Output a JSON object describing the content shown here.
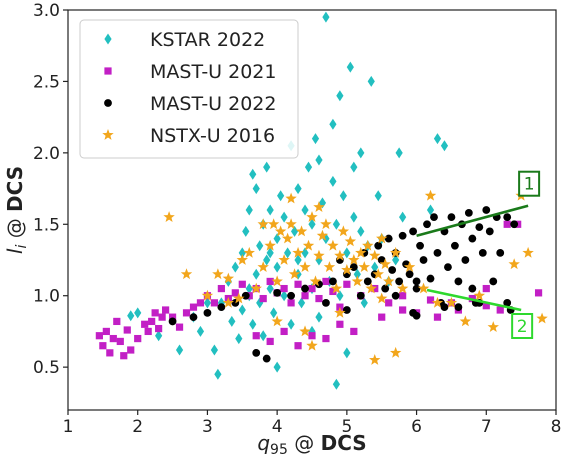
{
  "chart_data": {
    "type": "scatter",
    "title": "",
    "xlabel": {
      "base": "q",
      "sub": "95",
      "rest": " @ ",
      "bold": "DCS"
    },
    "ylabel": {
      "base": "l",
      "sub": "i",
      "rest": " @ ",
      "bold": "DCS"
    },
    "xlim": [
      1,
      8
    ],
    "ylim": [
      0.2,
      3.0
    ],
    "xticks": [
      "1",
      "2",
      "3",
      "4",
      "5",
      "6",
      "7",
      "8"
    ],
    "yticks": [
      "0.5",
      "1.0",
      "1.5",
      "2.0",
      "2.5",
      "3.0"
    ],
    "grid": false,
    "legend_position": "top-left",
    "series": [
      {
        "name": "KSTAR 2022",
        "marker": "diamond",
        "color": "#22bfc0",
        "points": [
          [
            1.9,
            0.86
          ],
          [
            2.0,
            0.88
          ],
          [
            2.3,
            0.72
          ],
          [
            2.6,
            0.62
          ],
          [
            2.8,
            0.85
          ],
          [
            2.9,
            0.75
          ],
          [
            3.0,
            0.95
          ],
          [
            3.1,
            0.62
          ],
          [
            3.15,
            0.45
          ],
          [
            3.2,
            0.95
          ],
          [
            3.3,
            1.1
          ],
          [
            3.35,
            0.82
          ],
          [
            3.4,
            1.2
          ],
          [
            3.45,
            0.7
          ],
          [
            3.5,
            1.3
          ],
          [
            3.5,
            0.9
          ],
          [
            3.55,
            1.45
          ],
          [
            3.6,
            1.0
          ],
          [
            3.6,
            1.6
          ],
          [
            3.65,
            0.8
          ],
          [
            3.65,
            1.85
          ],
          [
            3.7,
            1.15
          ],
          [
            3.7,
            1.75
          ],
          [
            3.75,
            1.35
          ],
          [
            3.75,
            0.95
          ],
          [
            3.8,
            1.5
          ],
          [
            3.8,
            0.72
          ],
          [
            3.85,
            1.25
          ],
          [
            3.85,
            1.9
          ],
          [
            3.9,
            1.05
          ],
          [
            3.9,
            1.6
          ],
          [
            3.95,
            0.88
          ],
          [
            4.0,
            1.4
          ],
          [
            4.0,
            1.2
          ],
          [
            4.0,
            0.5
          ],
          [
            4.05,
            1.7
          ],
          [
            4.1,
            1.0
          ],
          [
            4.1,
            1.55
          ],
          [
            4.15,
            1.3
          ],
          [
            4.2,
            0.8
          ],
          [
            4.2,
            2.05
          ],
          [
            4.25,
            1.45
          ],
          [
            4.3,
            1.15
          ],
          [
            4.3,
            1.75
          ],
          [
            4.35,
            0.95
          ],
          [
            4.4,
            1.6
          ],
          [
            4.4,
            1.3
          ],
          [
            4.45,
            1.9
          ],
          [
            4.5,
            1.05
          ],
          [
            4.5,
            1.5
          ],
          [
            4.55,
            2.1
          ],
          [
            4.6,
            1.25
          ],
          [
            4.6,
            0.85
          ],
          [
            4.65,
            1.65
          ],
          [
            4.7,
            1.4
          ],
          [
            4.7,
            2.95
          ],
          [
            4.75,
            1.1
          ],
          [
            4.8,
            1.8
          ],
          [
            4.8,
            2.2
          ],
          [
            4.85,
            1.5
          ],
          [
            4.9,
            1.0
          ],
          [
            4.9,
            2.4
          ],
          [
            4.95,
            1.7
          ],
          [
            5.0,
            1.3
          ],
          [
            5.0,
            0.6
          ],
          [
            5.05,
            2.6
          ],
          [
            5.1,
            1.55
          ],
          [
            5.1,
            1.9
          ],
          [
            5.15,
            1.15
          ],
          [
            5.2,
            1.45
          ],
          [
            5.2,
            2.0
          ],
          [
            5.25,
            0.95
          ],
          [
            5.3,
            1.35
          ],
          [
            5.35,
            2.5
          ],
          [
            5.4,
            1.2
          ],
          [
            5.45,
            1.7
          ],
          [
            5.5,
            1.4
          ],
          [
            5.6,
            1.1
          ],
          [
            5.7,
            1.25
          ],
          [
            5.75,
            2.0
          ],
          [
            5.8,
            1.55
          ],
          [
            4.85,
            0.38
          ],
          [
            3.6,
            1.05
          ],
          [
            4.3,
            1.25
          ],
          [
            4.5,
            0.75
          ],
          [
            6.3,
            2.1
          ],
          [
            6.4,
            2.05
          ],
          [
            6.2,
            1.6
          ],
          [
            4.6,
            1.95
          ],
          [
            3.9,
            1.3
          ]
        ]
      },
      {
        "name": "MAST-U 2021",
        "marker": "square",
        "color": "#c21fc5",
        "points": [
          [
            1.45,
            0.72
          ],
          [
            1.5,
            0.65
          ],
          [
            1.55,
            0.75
          ],
          [
            1.6,
            0.6
          ],
          [
            1.65,
            0.7
          ],
          [
            1.7,
            0.82
          ],
          [
            1.75,
            0.68
          ],
          [
            1.8,
            0.58
          ],
          [
            1.85,
            0.76
          ],
          [
            1.9,
            0.62
          ],
          [
            2.0,
            0.7
          ],
          [
            2.1,
            0.8
          ],
          [
            2.15,
            0.75
          ],
          [
            2.2,
            0.82
          ],
          [
            2.25,
            0.88
          ],
          [
            2.3,
            0.77
          ],
          [
            2.35,
            0.85
          ],
          [
            2.4,
            0.9
          ],
          [
            2.5,
            0.85
          ],
          [
            2.6,
            0.78
          ],
          [
            2.7,
            0.88
          ],
          [
            2.8,
            0.92
          ],
          [
            2.9,
            0.95
          ],
          [
            3.0,
            1.0
          ],
          [
            3.1,
            0.95
          ],
          [
            3.2,
            1.05
          ],
          [
            3.3,
            0.98
          ],
          [
            3.4,
            1.02
          ],
          [
            3.5,
            1.08
          ],
          [
            3.6,
            1.0
          ],
          [
            3.7,
            1.05
          ],
          [
            3.8,
            0.98
          ],
          [
            3.9,
            1.1
          ],
          [
            4.0,
            1.02
          ],
          [
            4.1,
            1.05
          ],
          [
            4.2,
            0.95
          ],
          [
            4.3,
            1.08
          ],
          [
            4.4,
            1.0
          ],
          [
            4.5,
            1.05
          ],
          [
            4.6,
            0.98
          ],
          [
            4.7,
            1.1
          ],
          [
            4.8,
            1.03
          ],
          [
            4.9,
            0.92
          ],
          [
            5.0,
            1.08
          ],
          [
            5.2,
            1.0
          ],
          [
            5.4,
            1.05
          ],
          [
            5.6,
            0.95
          ],
          [
            5.8,
            1.0
          ],
          [
            6.2,
            0.97
          ],
          [
            6.5,
            0.95
          ],
          [
            6.8,
            0.98
          ],
          [
            7.0,
            1.05
          ],
          [
            7.3,
            1.5
          ],
          [
            7.45,
            1.5
          ],
          [
            7.75,
            1.02
          ],
          [
            3.7,
            0.72
          ],
          [
            3.9,
            0.68
          ],
          [
            4.1,
            0.75
          ],
          [
            4.3,
            0.65
          ],
          [
            4.5,
            0.72
          ],
          [
            4.7,
            0.7
          ],
          [
            4.9,
            0.8
          ],
          [
            5.1,
            0.75
          ],
          [
            5.5,
            0.85
          ],
          [
            5.8,
            0.9
          ],
          [
            6.0,
            0.88
          ],
          [
            6.3,
            0.85
          ],
          [
            6.6,
            0.9
          ],
          [
            7.0,
            0.93
          ],
          [
            7.2,
            0.9
          ]
        ]
      },
      {
        "name": "MAST-U 2022",
        "marker": "circle",
        "color": "#000000",
        "points": [
          [
            2.5,
            0.82
          ],
          [
            2.8,
            0.85
          ],
          [
            3.0,
            0.88
          ],
          [
            3.2,
            0.92
          ],
          [
            3.4,
            0.95
          ],
          [
            3.55,
            1.0
          ],
          [
            3.7,
            0.6
          ],
          [
            3.85,
            0.56
          ],
          [
            4.0,
            1.02
          ],
          [
            4.2,
            1.0
          ],
          [
            4.4,
            1.05
          ],
          [
            4.6,
            1.08
          ],
          [
            4.8,
            1.1
          ],
          [
            4.9,
            1.25
          ],
          [
            5.0,
            1.15
          ],
          [
            5.1,
            1.2
          ],
          [
            5.2,
            1.0
          ],
          [
            5.25,
            1.3
          ],
          [
            5.3,
            1.1
          ],
          [
            5.4,
            1.15
          ],
          [
            5.45,
            1.35
          ],
          [
            5.5,
            1.25
          ],
          [
            5.55,
            1.05
          ],
          [
            5.6,
            1.4
          ],
          [
            5.65,
            1.18
          ],
          [
            5.7,
            1.3
          ],
          [
            5.75,
            1.1
          ],
          [
            5.8,
            1.42
          ],
          [
            5.85,
            1.22
          ],
          [
            5.9,
            1.15
          ],
          [
            5.95,
            1.45
          ],
          [
            6.0,
            1.05
          ],
          [
            6.05,
            1.35
          ],
          [
            6.1,
            1.25
          ],
          [
            6.15,
            1.5
          ],
          [
            6.2,
            1.12
          ],
          [
            6.25,
            1.55
          ],
          [
            6.3,
            1.3
          ],
          [
            6.35,
            0.95
          ],
          [
            6.4,
            1.45
          ],
          [
            6.45,
            1.2
          ],
          [
            6.5,
            1.55
          ],
          [
            6.55,
            1.35
          ],
          [
            6.6,
            1.1
          ],
          [
            6.65,
            1.5
          ],
          [
            6.7,
            1.25
          ],
          [
            6.75,
            1.58
          ],
          [
            6.8,
            1.4
          ],
          [
            6.85,
            0.95
          ],
          [
            6.9,
            1.48
          ],
          [
            6.95,
            1.3
          ],
          [
            7.0,
            1.6
          ],
          [
            7.05,
            1.45
          ],
          [
            7.1,
            1.1
          ],
          [
            7.15,
            1.55
          ],
          [
            7.2,
            1.3
          ],
          [
            7.3,
            1.55
          ],
          [
            7.4,
            1.5
          ],
          [
            6.0,
            0.86
          ],
          [
            5.95,
            0.88
          ],
          [
            6.4,
            0.92
          ],
          [
            6.6,
            0.92
          ],
          [
            6.9,
            0.95
          ],
          [
            7.3,
            0.95
          ],
          [
            7.35,
            0.9
          ],
          [
            5.0,
            0.9
          ],
          [
            4.7,
            0.95
          ],
          [
            5.7,
            1.0
          ],
          [
            6.0,
            1.1
          ],
          [
            6.8,
            1.05
          ]
        ]
      },
      {
        "name": "NSTX-U 2016",
        "marker": "star",
        "color": "#f2a61c",
        "points": [
          [
            2.45,
            1.55
          ],
          [
            2.7,
            1.15
          ],
          [
            3.0,
            1.0
          ],
          [
            3.15,
            1.15
          ],
          [
            3.3,
            0.95
          ],
          [
            3.5,
            1.25
          ],
          [
            3.6,
            1.3
          ],
          [
            3.7,
            1.05
          ],
          [
            3.8,
            1.2
          ],
          [
            3.9,
            1.35
          ],
          [
            3.95,
            1.5
          ],
          [
            4.0,
            1.1
          ],
          [
            4.05,
            1.45
          ],
          [
            4.1,
            1.25
          ],
          [
            4.15,
            1.4
          ],
          [
            4.2,
            1.5
          ],
          [
            4.25,
            1.15
          ],
          [
            4.3,
            1.3
          ],
          [
            4.35,
            1.45
          ],
          [
            4.4,
            1.2
          ],
          [
            4.45,
            1.35
          ],
          [
            4.5,
            1.55
          ],
          [
            4.55,
            1.1
          ],
          [
            4.6,
            1.28
          ],
          [
            4.65,
            1.42
          ],
          [
            4.7,
            1.5
          ],
          [
            4.75,
            1.2
          ],
          [
            4.8,
            1.35
          ],
          [
            4.85,
            1.05
          ],
          [
            4.9,
            1.28
          ],
          [
            4.95,
            1.45
          ],
          [
            5.0,
            1.18
          ],
          [
            5.05,
            1.38
          ],
          [
            5.1,
            1.25
          ],
          [
            5.15,
            1.1
          ],
          [
            5.2,
            1.3
          ],
          [
            5.25,
            1.2
          ],
          [
            5.3,
            1.35
          ],
          [
            5.35,
            1.05
          ],
          [
            5.4,
            1.28
          ],
          [
            5.45,
            1.15
          ],
          [
            5.5,
            1.4
          ],
          [
            5.55,
            1.22
          ],
          [
            5.6,
            1.1
          ],
          [
            5.7,
            1.3
          ],
          [
            5.8,
            1.05
          ],
          [
            5.9,
            1.2
          ],
          [
            6.1,
            1.05
          ],
          [
            6.2,
            1.7
          ],
          [
            6.3,
            0.95
          ],
          [
            6.5,
            0.95
          ],
          [
            6.7,
            0.82
          ],
          [
            6.9,
            1.0
          ],
          [
            7.1,
            0.78
          ],
          [
            7.4,
            1.22
          ],
          [
            7.5,
            1.7
          ],
          [
            7.6,
            1.3
          ],
          [
            7.8,
            0.84
          ],
          [
            3.3,
            1.12
          ],
          [
            3.45,
            0.98
          ],
          [
            4.4,
            0.75
          ],
          [
            4.5,
            0.65
          ],
          [
            4.0,
            0.82
          ],
          [
            5.5,
            0.98
          ],
          [
            5.7,
            0.6
          ],
          [
            4.9,
            0.88
          ],
          [
            3.8,
            1.5
          ],
          [
            4.2,
            1.68
          ],
          [
            4.6,
            1.62
          ],
          [
            5.4,
            0.55
          ]
        ]
      }
    ],
    "annotations": [
      {
        "label": "1",
        "color": "#1a7a1a",
        "line": [
          [
            6.0,
            1.42
          ],
          [
            7.6,
            1.63
          ]
        ]
      },
      {
        "label": "2",
        "color": "#2ed82e",
        "line": [
          [
            6.15,
            1.04
          ],
          [
            7.5,
            0.9
          ]
        ]
      }
    ]
  }
}
